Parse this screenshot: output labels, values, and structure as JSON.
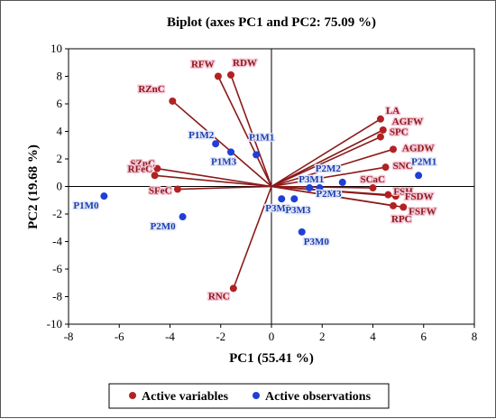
{
  "colors": {
    "variable": "#b22222",
    "variable_line": "#8b1a1a",
    "observation": "#1f3fd6",
    "axis": "#000000"
  },
  "chart_data": {
    "type": "scatter",
    "subtype": "biplot",
    "title": "Biplot (axes PC1 and PC2: 75.09 %)",
    "xlabel": "PC1 (55.41 %)",
    "ylabel": "PC2 (19.68 %)",
    "xlim": [
      -8,
      8
    ],
    "ylim": [
      -10,
      10
    ],
    "xticks": [
      -8,
      -6,
      -4,
      -2,
      0,
      2,
      4,
      6,
      8
    ],
    "yticks": [
      -10,
      -8,
      -6,
      -4,
      -2,
      0,
      2,
      4,
      6,
      8,
      10
    ],
    "legend_position": "bottom",
    "series": [
      {
        "name": "Active variables",
        "points": [
          {
            "label": "RFW",
            "x": -2.1,
            "y": 8.0
          },
          {
            "label": "RDW",
            "x": -1.6,
            "y": 8.1
          },
          {
            "label": "RZnC",
            "x": -3.9,
            "y": 6.2
          },
          {
            "label": "LA",
            "x": 4.3,
            "y": 4.9
          },
          {
            "label": "AGFW",
            "x": 4.4,
            "y": 4.1
          },
          {
            "label": "SPC",
            "x": 4.3,
            "y": 3.6
          },
          {
            "label": "AGDW",
            "x": 4.8,
            "y": 2.7
          },
          {
            "label": "SZnC",
            "x": -4.5,
            "y": 1.3
          },
          {
            "label": "RFeC",
            "x": -4.6,
            "y": 0.8
          },
          {
            "label": "SNC",
            "x": 4.5,
            "y": 1.4
          },
          {
            "label": "SFeC",
            "x": -3.7,
            "y": -0.2
          },
          {
            "label": "SCaC",
            "x": 4.0,
            "y": -0.1
          },
          {
            "label": "FSH",
            "x": 4.6,
            "y": -0.6
          },
          {
            "label": "FSDW",
            "x": 4.9,
            "y": -0.7
          },
          {
            "label": "FSFW",
            "x": 5.2,
            "y": -1.5
          },
          {
            "label": "RPC",
            "x": 4.8,
            "y": -1.4
          },
          {
            "label": "RNC",
            "x": -1.5,
            "y": -7.4
          }
        ]
      },
      {
        "name": "Active observations",
        "points": [
          {
            "label": "P1M0",
            "x": -6.6,
            "y": -0.7
          },
          {
            "label": "P1M1",
            "x": -0.6,
            "y": 2.3
          },
          {
            "label": "P1M2",
            "x": -2.2,
            "y": 3.1
          },
          {
            "label": "P1M3",
            "x": -1.6,
            "y": 2.5
          },
          {
            "label": "P2M0",
            "x": -3.5,
            "y": -2.2
          },
          {
            "label": "P2M1",
            "x": 5.8,
            "y": 0.8
          },
          {
            "label": "P2M2",
            "x": 2.8,
            "y": 0.3
          },
          {
            "label": "P2M3",
            "x": 1.9,
            "y": -0.1
          },
          {
            "label": "P3M0",
            "x": 1.2,
            "y": -3.3
          },
          {
            "label": "P3M1",
            "x": 1.5,
            "y": -0.1
          },
          {
            "label": "P3M2",
            "x": 0.4,
            "y": -0.9
          },
          {
            "label": "P3M3",
            "x": 0.9,
            "y": -0.9
          }
        ]
      }
    ]
  }
}
